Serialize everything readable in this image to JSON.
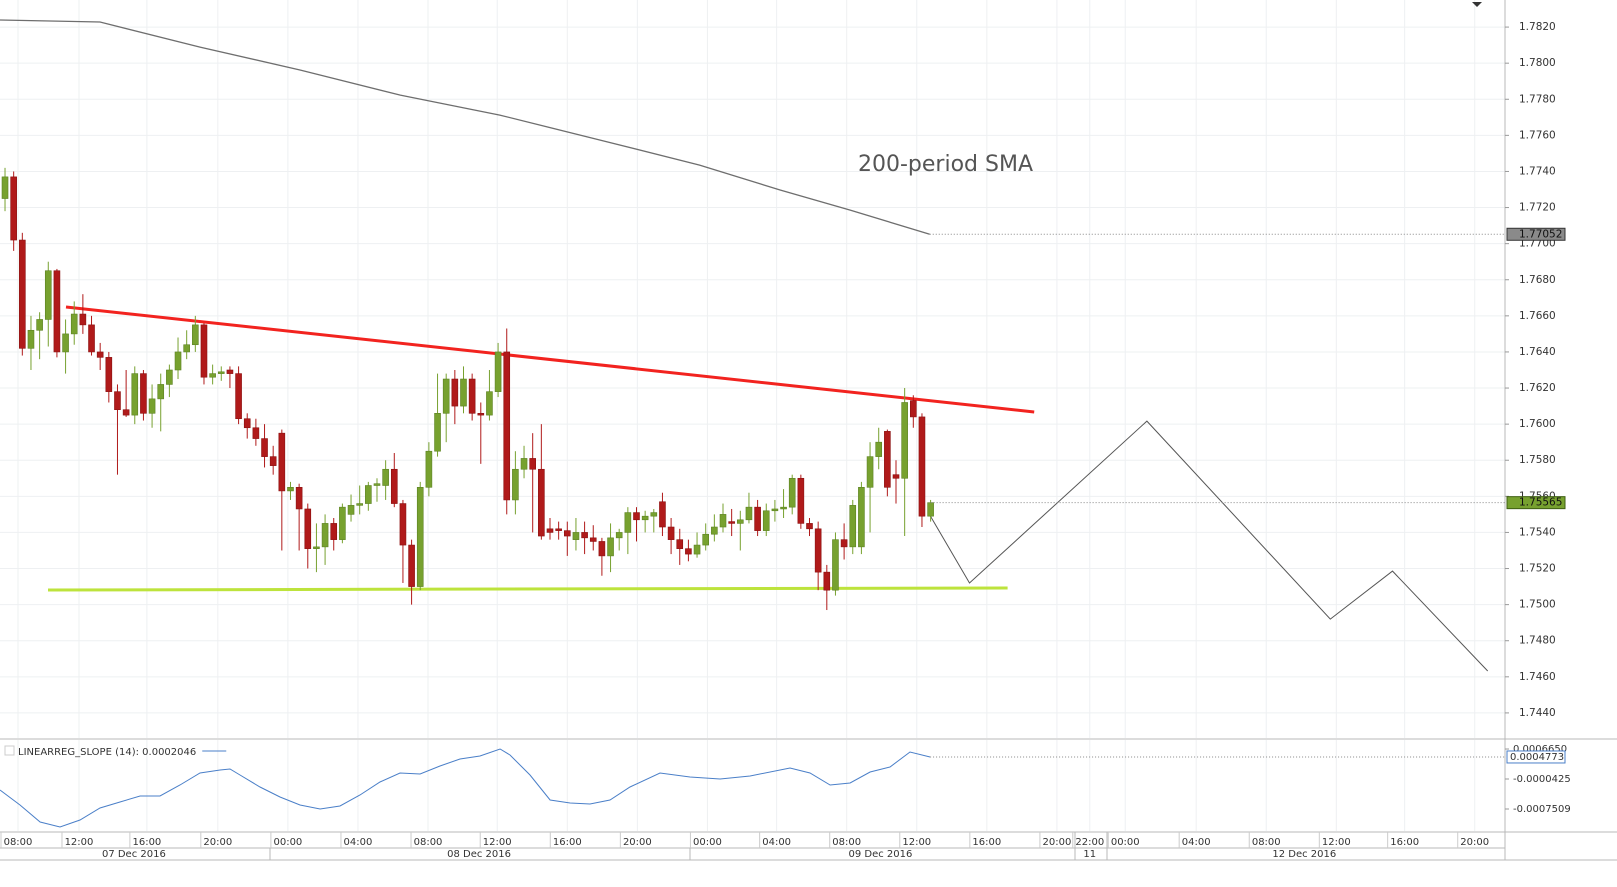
{
  "chart_data": [
    {
      "type": "candlestick",
      "annotation": "200-period SMA",
      "grid": true,
      "xlim": [
        -0.58,
        173.4
      ],
      "xticks": [
        {
          "value": 1.5,
          "label": "08:00"
        },
        {
          "value": 8.55,
          "label": "12:00"
        },
        {
          "value": 16.4,
          "label": "16:00"
        },
        {
          "value": 24.6,
          "label": "20:00"
        },
        {
          "value": 32.7,
          "label": "00:00"
        },
        {
          "value": 40.8,
          "label": "04:00"
        },
        {
          "value": 48.9,
          "label": "08:00"
        },
        {
          "value": 56.9,
          "label": "12:00"
        },
        {
          "value": 65.0,
          "label": "16:00"
        },
        {
          "value": 73.1,
          "label": "20:00"
        },
        {
          "value": 81.2,
          "label": "00:00"
        },
        {
          "value": 89.2,
          "label": "04:00"
        },
        {
          "value": 97.3,
          "label": "08:00"
        },
        {
          "value": 105.4,
          "label": "12:00"
        },
        {
          "value": 113.5,
          "label": "16:00"
        },
        {
          "value": 121.6,
          "label": "20:00"
        },
        {
          "value": 125.4,
          "label": "22:00"
        },
        {
          "value": 129.5,
          "label": "00:00"
        },
        {
          "value": 137.7,
          "label": "04:00"
        },
        {
          "value": 145.8,
          "label": "08:00"
        },
        {
          "value": 153.9,
          "label": "12:00"
        },
        {
          "value": 161.8,
          "label": "16:00"
        },
        {
          "value": 169.9,
          "label": "20:00"
        }
      ],
      "date_labels": [
        {
          "value": 14.9,
          "label": "07 Dec 2016"
        },
        {
          "value": 54.8,
          "label": "08 Dec 2016"
        },
        {
          "value": 101.2,
          "label": "09 Dec 2016"
        },
        {
          "value": 125.4,
          "label": "11"
        },
        {
          "value": 150.2,
          "label": "12 Dec 2016"
        }
      ],
      "ylim": [
        1.74261,
        1.7835
      ],
      "yticks": [
        {
          "value": 1.782,
          "label": "1.7820"
        },
        {
          "value": 1.78,
          "label": "1.7800"
        },
        {
          "value": 1.778,
          "label": "1.7780"
        },
        {
          "value": 1.776,
          "label": "1.7760"
        },
        {
          "value": 1.774,
          "label": "1.7740"
        },
        {
          "value": 1.772,
          "label": "1.7720"
        },
        {
          "value": 1.77,
          "label": "1.7700"
        },
        {
          "value": 1.768,
          "label": "1.7680"
        },
        {
          "value": 1.766,
          "label": "1.7660"
        },
        {
          "value": 1.764,
          "label": "1.7640"
        },
        {
          "value": 1.762,
          "label": "1.7620"
        },
        {
          "value": 1.76,
          "label": "1.7600"
        },
        {
          "value": 1.758,
          "label": "1.7580"
        },
        {
          "value": 1.756,
          "label": "1.7560"
        },
        {
          "value": 1.754,
          "label": "1.7540"
        },
        {
          "value": 1.752,
          "label": "1.7520"
        },
        {
          "value": 1.75,
          "label": "1.7500"
        },
        {
          "value": 1.748,
          "label": "1.7480"
        },
        {
          "value": 1.746,
          "label": "1.7460"
        },
        {
          "value": 1.744,
          "label": "1.7440"
        }
      ],
      "candles": {
        "up_color": "#77a12f",
        "down_color": "#b01a1a",
        "open": [
          1.7725,
          1.7737,
          1.7702,
          1.7642,
          1.7652,
          1.7658,
          1.7685,
          1.764,
          1.765,
          1.7661,
          1.7655,
          1.764,
          1.7637,
          1.7618,
          1.7608,
          1.7605,
          1.7628,
          1.7606,
          1.7614,
          1.7622,
          1.763,
          1.764,
          1.7644,
          1.7655,
          1.7626,
          1.7628,
          1.763,
          1.7628,
          1.7603,
          1.7598,
          1.7592,
          1.7582,
          1.7595,
          1.7563,
          1.7565,
          1.7553,
          1.7531,
          1.7532,
          1.7545,
          1.7536,
          1.755,
          1.7555,
          1.7556,
          1.7566,
          1.7566,
          1.7575,
          1.7556,
          1.7533,
          1.751,
          1.7565,
          1.7585,
          1.7606,
          1.7625,
          1.761,
          1.7625,
          1.7606,
          1.7605,
          1.7618,
          1.764,
          1.7558,
          1.7575,
          1.7581,
          1.7575,
          1.7542,
          1.7542,
          1.7541,
          1.7536,
          1.754,
          1.7537,
          1.7535,
          1.7527,
          1.7537,
          1.754,
          1.7551,
          1.7547,
          1.7549,
          1.7557,
          1.7543,
          1.7536,
          1.7531,
          1.7528,
          1.7533,
          1.7539,
          1.7543,
          1.7546,
          1.7545,
          1.7547,
          1.7554,
          1.7541,
          1.7552,
          1.7553,
          1.7554,
          1.757,
          1.7545,
          1.7542,
          1.7518,
          1.7508,
          1.7536,
          1.7532,
          1.7532,
          1.7565,
          1.7582,
          1.7596,
          1.7572,
          1.757,
          1.7613,
          1.7604,
          1.7549
        ],
        "high": [
          1.7742,
          1.774,
          1.7706,
          1.766,
          1.7662,
          1.769,
          1.7686,
          1.7658,
          1.7668,
          1.7672,
          1.766,
          1.7645,
          1.764,
          1.7622,
          1.763,
          1.7632,
          1.763,
          1.7622,
          1.7628,
          1.7633,
          1.7648,
          1.7652,
          1.766,
          1.7656,
          1.7633,
          1.7632,
          1.7632,
          1.7632,
          1.7606,
          1.7603,
          1.76,
          1.7588,
          1.7597,
          1.7568,
          1.7567,
          1.7556,
          1.7545,
          1.755,
          1.7548,
          1.7556,
          1.7561,
          1.7566,
          1.7568,
          1.757,
          1.758,
          1.7584,
          1.7558,
          1.7536,
          1.7568,
          1.759,
          1.7628,
          1.7628,
          1.763,
          1.7632,
          1.7628,
          1.7612,
          1.763,
          1.7645,
          1.7653,
          1.7585,
          1.7588,
          1.7595,
          1.76,
          1.7548,
          1.7546,
          1.7546,
          1.7548,
          1.7546,
          1.7544,
          1.7537,
          1.7545,
          1.7542,
          1.7554,
          1.7554,
          1.7552,
          1.7553,
          1.7562,
          1.7548,
          1.7542,
          1.7536,
          1.754,
          1.7545,
          1.755,
          1.7556,
          1.7553,
          1.7552,
          1.7562,
          1.7558,
          1.7556,
          1.7558,
          1.7564,
          1.7572,
          1.7572,
          1.7548,
          1.7546,
          1.7522,
          1.754,
          1.7545,
          1.7558,
          1.7568,
          1.759,
          1.7598,
          1.7597,
          1.758,
          1.762,
          1.7616,
          1.7606,
          1.7558
        ],
        "low": [
          1.7718,
          1.7696,
          1.7638,
          1.763,
          1.7636,
          1.7643,
          1.7637,
          1.7628,
          1.7644,
          1.765,
          1.7638,
          1.763,
          1.7612,
          1.7572,
          1.7604,
          1.76,
          1.7602,
          1.7598,
          1.7596,
          1.7615,
          1.7625,
          1.7636,
          1.764,
          1.7622,
          1.7622,
          1.7624,
          1.762,
          1.76,
          1.7592,
          1.7588,
          1.7576,
          1.7572,
          1.753,
          1.7558,
          1.753,
          1.752,
          1.7518,
          1.7522,
          1.753,
          1.7534,
          1.7546,
          1.755,
          1.7552,
          1.7557,
          1.7558,
          1.7554,
          1.7512,
          1.75,
          1.7508,
          1.756,
          1.7582,
          1.759,
          1.76,
          1.7606,
          1.7602,
          1.7578,
          1.7602,
          1.7615,
          1.755,
          1.755,
          1.757,
          1.754,
          1.7536,
          1.7536,
          1.7536,
          1.7527,
          1.753,
          1.7528,
          1.753,
          1.7516,
          1.7518,
          1.753,
          1.7528,
          1.7535,
          1.754,
          1.754,
          1.7538,
          1.7528,
          1.7522,
          1.7524,
          1.7526,
          1.753,
          1.7535,
          1.754,
          1.7538,
          1.753,
          1.7545,
          1.7538,
          1.7538,
          1.7546,
          1.7548,
          1.755,
          1.7542,
          1.7538,
          1.7508,
          1.7497,
          1.7505,
          1.7525,
          1.7528,
          1.7528,
          1.754,
          1.7575,
          1.756,
          1.7556,
          1.7538,
          1.7598,
          1.7543,
          1.7546
        ],
        "close": [
          1.7737,
          1.7702,
          1.7642,
          1.7652,
          1.7658,
          1.7685,
          1.764,
          1.765,
          1.7661,
          1.7655,
          1.764,
          1.7637,
          1.7618,
          1.7608,
          1.7605,
          1.7628,
          1.7606,
          1.7614,
          1.7622,
          1.763,
          1.764,
          1.7644,
          1.7655,
          1.7626,
          1.7628,
          1.7629,
          1.7628,
          1.7603,
          1.7598,
          1.7592,
          1.7582,
          1.7577,
          1.7563,
          1.7565,
          1.7553,
          1.7531,
          1.7532,
          1.7545,
          1.7536,
          1.7554,
          1.7555,
          1.7556,
          1.7566,
          1.7567,
          1.7575,
          1.7556,
          1.7533,
          1.751,
          1.7565,
          1.7585,
          1.7606,
          1.7625,
          1.761,
          1.7625,
          1.7606,
          1.7605,
          1.7618,
          1.764,
          1.7558,
          1.7575,
          1.7581,
          1.7575,
          1.7538,
          1.754,
          1.7541,
          1.7538,
          1.754,
          1.7537,
          1.7535,
          1.7527,
          1.7537,
          1.754,
          1.7551,
          1.7547,
          1.7549,
          1.7551,
          1.7543,
          1.7536,
          1.7531,
          1.7528,
          1.7533,
          1.7539,
          1.7543,
          1.755,
          1.7545,
          1.7547,
          1.7554,
          1.7541,
          1.7552,
          1.7553,
          1.7554,
          1.757,
          1.7545,
          1.7542,
          1.7518,
          1.7508,
          1.7536,
          1.7532,
          1.7555,
          1.7565,
          1.7582,
          1.759,
          1.7565,
          1.757,
          1.7612,
          1.7604,
          1.7549,
          1.75565
        ]
      },
      "sma": {
        "color": "#6e6e6e",
        "x": [
          -0.58,
          10.98,
          22.54,
          34.1,
          45.7,
          57.2,
          68.8,
          80.3,
          89.6,
          97.7,
          106.9
        ],
        "values": [
          1.78239,
          1.78228,
          1.78089,
          1.77962,
          1.77823,
          1.77712,
          1.77574,
          1.77435,
          1.77297,
          1.77186,
          1.77052
        ]
      },
      "lines": [
        {
          "color": "#f2231f",
          "width": 3,
          "x": [
            7.05,
            118.97
          ],
          "values": [
            1.76649,
            1.76067
          ]
        },
        {
          "color": "#bde33c",
          "width": 3,
          "x": [
            4.97,
            115.9
          ],
          "values": [
            1.75081,
            1.75092
          ]
        },
        {
          "color": "#555555",
          "width": 1,
          "x": [
            106.9,
            111.5,
            132.0,
            153.2,
            160.4,
            171.4
          ],
          "values": [
            1.75497,
            1.7512,
            1.76017,
            1.7492,
            1.75186,
            1.74632
          ]
        }
      ]
    },
    {
      "type": "line",
      "legend": "LINEARREG_SLOPE (14): 0.0002046",
      "color": "#4a7fc8",
      "xlim": [
        -0.58,
        173.4
      ],
      "ylim": [
        -0.001294,
        0.000878
      ],
      "yticks": [
        {
          "value": 0.000665,
          "label": "0.0006650"
        },
        -4.25e-05,
        -0.0007509
      ],
      "x": [
        -0.58,
        1.73,
        4.05,
        6.36,
        8.67,
        10.98,
        13.29,
        15.61,
        17.92,
        20.23,
        22.54,
        24.86,
        26.01,
        27.17,
        29.48,
        31.79,
        34.1,
        36.42,
        38.73,
        41.04,
        43.35,
        45.66,
        47.98,
        50.29,
        52.6,
        54.91,
        57.23,
        58.38,
        60.69,
        63.01,
        65.32,
        67.63,
        69.94,
        72.25,
        75.72,
        79.19,
        82.66,
        86.13,
        90.75,
        93.06,
        95.38,
        97.69,
        100.0,
        102.31,
        104.62,
        106.94
      ],
      "values": [
        -0.0003022,
        -0.0006564,
        -0.0010577,
        -0.0011758,
        -0.0010105,
        -0.0007272,
        -0.0005855,
        -0.0004439,
        -0.0004439,
        -0.0001842,
        9.92e-05,
        0.00017,
        0.0001936,
        5.19e-05,
        -0.0002314,
        -0.0004675,
        -0.0006564,
        -0.0007508,
        -0.00068,
        -0.0004203,
        -0.0001133,
        9.92e-05,
        7.55e-05,
        0.0002644,
        0.0004297,
        0.0005005,
        0.0006658,
        0.0005241,
        5.19e-05,
        -0.0005383,
        -0.0006091,
        -0.0006328,
        -0.0005383,
        -0.0002314,
        9.92e-05,
        4.7e-06,
        -4.25e-05,
        2.83e-05,
        0.0002172,
        9.92e-05,
        -0.0001842,
        -0.0001369,
        0.0001228,
        0.0002408,
        0.000595,
        0.0004773
      ]
    }
  ]
}
